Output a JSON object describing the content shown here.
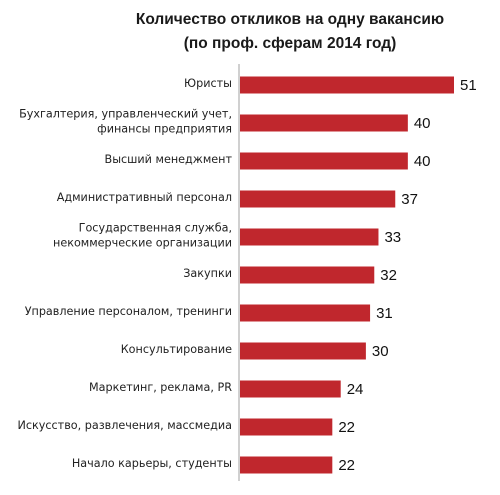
{
  "chart_data": {
    "type": "bar",
    "orientation": "horizontal",
    "title": [
      "Количество откликов на одну вакансию",
      "(по проф. сферам 2014 год)"
    ],
    "categories": [
      [
        "Юристы"
      ],
      [
        "Бухгалтерия, управленческий учет,",
        "финансы предприятия"
      ],
      [
        "Высший менеджмент"
      ],
      [
        "Административный персонал"
      ],
      [
        "Государственная служба,",
        "некоммерческие организации"
      ],
      [
        "Закупки"
      ],
      [
        "Управление персоналом, тренинги"
      ],
      [
        "Консультирование"
      ],
      [
        "Маркетинг, реклама, PR"
      ],
      [
        "Искусство, развлечения, массмедиа"
      ],
      [
        "Начало карьеры, студенты"
      ]
    ],
    "values": [
      51,
      40,
      40,
      37,
      33,
      32,
      31,
      30,
      24,
      22,
      22
    ],
    "xlim": [
      0,
      51
    ],
    "bar_color": "#c0272d",
    "grid": false,
    "legend": "none",
    "data_labels": true
  }
}
